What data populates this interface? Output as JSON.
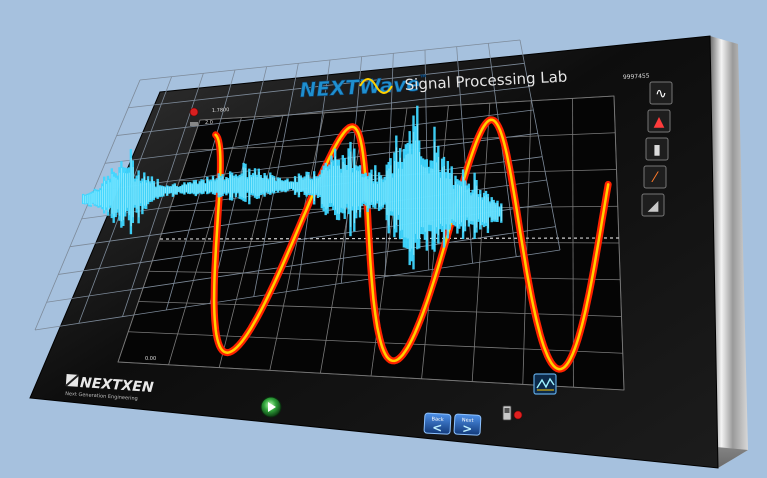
{
  "brand": {
    "product": "NEXTWave",
    "product_tm": "™",
    "app_title": "Signal Processing Lab",
    "company": "NEXTXEN",
    "company_tagline": "Next Generation Engineering"
  },
  "display": {
    "top_readout": "9997455",
    "trace_label_top": "1.7800",
    "trace_label_bottom": "0.0",
    "trace_marker": "2.0",
    "axis_bottom": "0.00"
  },
  "nav": {
    "back_label": "Back",
    "next_label": "Next",
    "back_glyph": "<",
    "next_glyph": ">"
  },
  "side_tools": [
    {
      "name": "waveform-tool-icon",
      "glyph": "∿"
    },
    {
      "name": "signal-tool-icon",
      "glyph": "▲"
    },
    {
      "name": "filter-tool-icon",
      "glyph": "▮"
    },
    {
      "name": "slope-tool-icon",
      "glyph": "⁄"
    },
    {
      "name": "ramp-tool-icon",
      "glyph": "◢"
    }
  ],
  "colors": {
    "background": "#a6c1de",
    "screen": "#050505",
    "sine_outer": "#ff2200",
    "sine_inner": "#ffd000",
    "wave_3d": "#3fd6ff",
    "accent_blue": "#2a6cc8"
  }
}
